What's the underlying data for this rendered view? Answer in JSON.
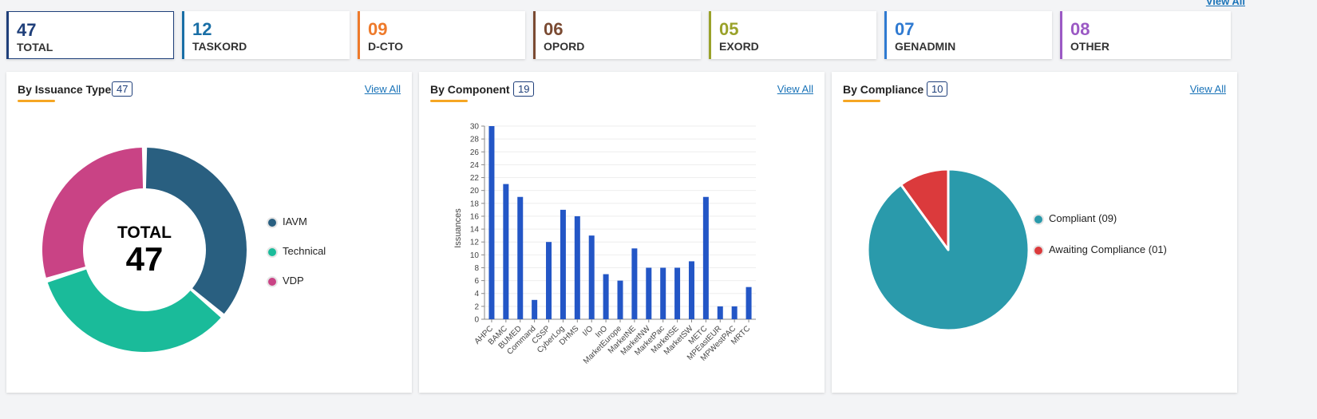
{
  "top_view_all": "View All",
  "tiles": [
    {
      "count": "47",
      "label": "TOTAL",
      "color": "#1f3f7a",
      "active": true
    },
    {
      "count": "12",
      "label": "TASKORD",
      "color": "#1a6fa6"
    },
    {
      "count": "09",
      "label": "D-CTO",
      "color": "#ee7a2b"
    },
    {
      "count": "06",
      "label": "OPORD",
      "color": "#7a4a32"
    },
    {
      "count": "05",
      "label": "EXORD",
      "color": "#9aa22a"
    },
    {
      "count": "07",
      "label": "GENADMIN",
      "color": "#2f7ad1"
    },
    {
      "count": "08",
      "label": "OTHER",
      "color": "#9b59c4"
    }
  ],
  "issuance": {
    "title": "By Issuance Type",
    "badge": "47",
    "view_all": "View All",
    "center_label": "TOTAL",
    "center_value": "47",
    "chart_data": {
      "type": "pie",
      "labels": [
        "IAVM",
        "Technical",
        "VDP"
      ],
      "values": [
        17,
        16,
        14
      ],
      "colors": [
        "#295f80",
        "#1abb9a",
        "#c94385"
      ]
    }
  },
  "component": {
    "title": "By Component",
    "badge": "19",
    "view_all": "View All",
    "chart_data": {
      "type": "bar",
      "categories": [
        "AHPC",
        "BAMC",
        "BUMED",
        "Command",
        "CSSP",
        "CyberLog",
        "DHMS",
        "I/O",
        "InO",
        "MarketEurope",
        "MarketNE",
        "MarketNW",
        "MarketPac",
        "MarketSE",
        "MarketSW",
        "METC",
        "MPEastEUR",
        "MPWestPAC",
        "MRTC"
      ],
      "values": [
        30,
        21,
        19,
        3,
        12,
        17,
        16,
        13,
        7,
        6,
        11,
        8,
        8,
        8,
        9,
        19,
        2,
        2,
        5
      ],
      "ylabel": "Issuances",
      "ylim": [
        0,
        30
      ],
      "yticks": [
        0,
        2,
        4,
        6,
        8,
        10,
        12,
        14,
        16,
        18,
        20,
        22,
        24,
        26,
        28,
        30
      ],
      "color": "#2356c6",
      "grid": true
    }
  },
  "compliance": {
    "title": "By Compliance",
    "badge": "10",
    "view_all": "View All",
    "chart_data": {
      "type": "pie",
      "labels": [
        "Compliant (09)",
        "Awaiting Compliance (01)"
      ],
      "values": [
        9,
        1
      ],
      "colors": [
        "#2a9aab",
        "#db3a3c"
      ]
    }
  }
}
